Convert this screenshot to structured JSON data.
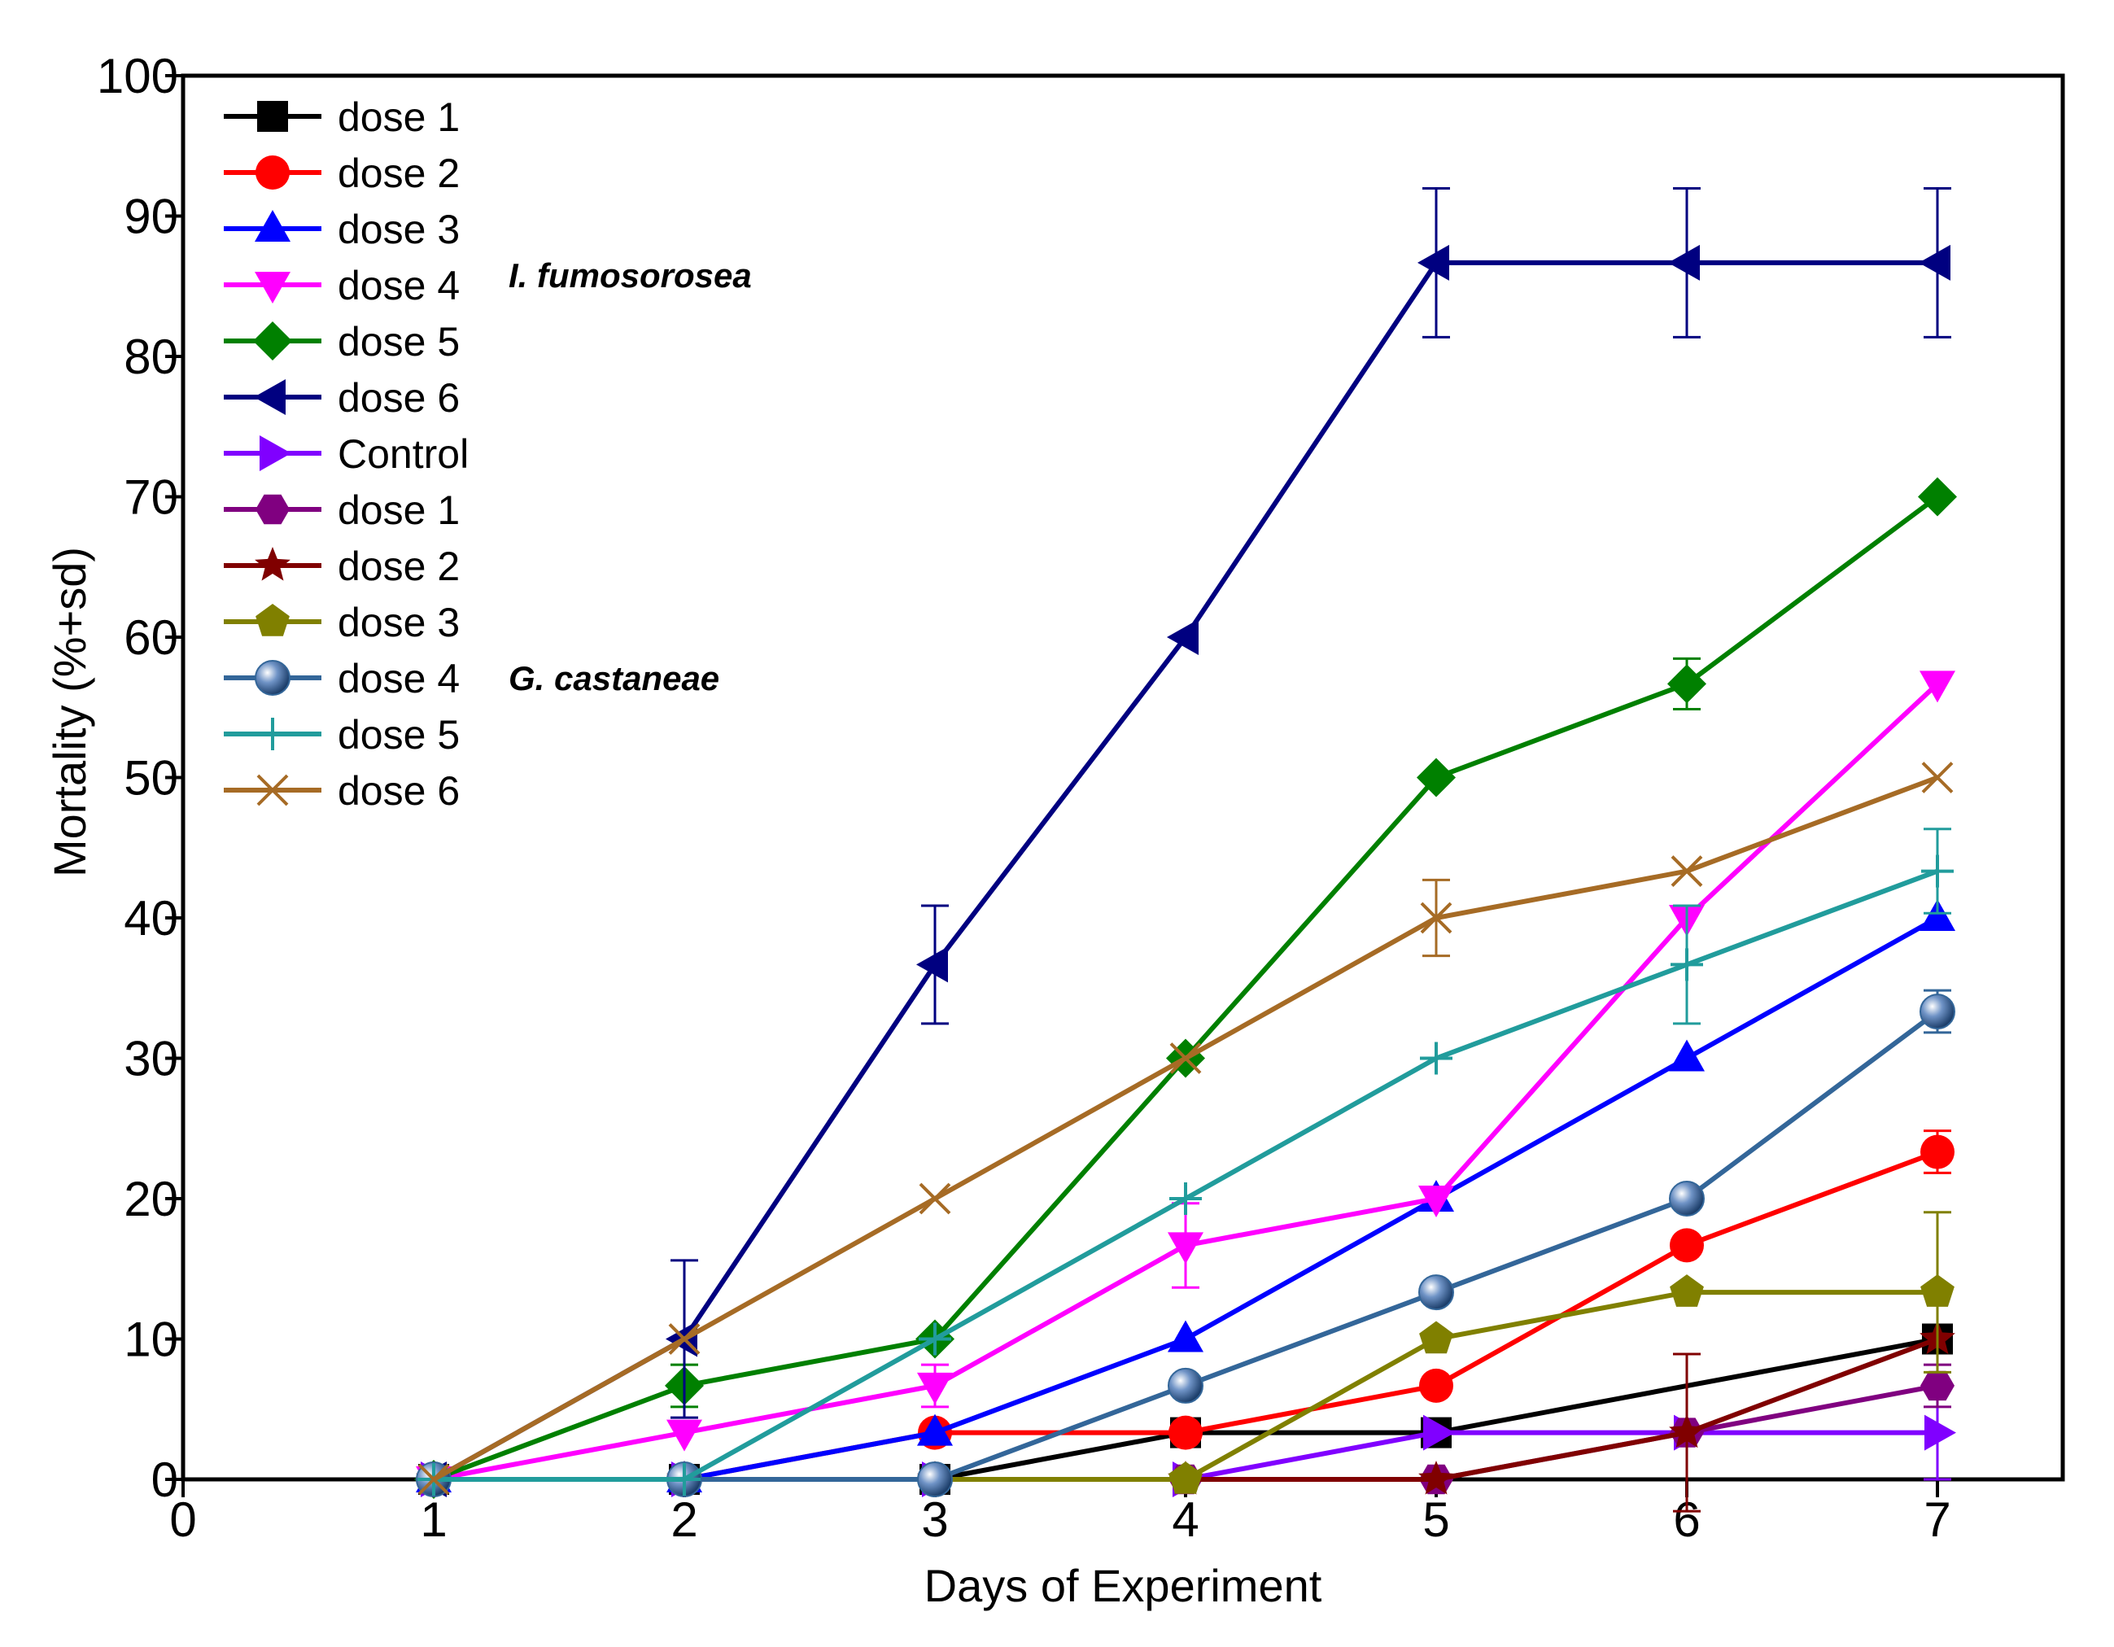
{
  "chart_data": {
    "type": "line",
    "xlabel": "Days of Experiment",
    "ylabel": "Mortality (%+sd)",
    "xlim": [
      0,
      7.5
    ],
    "ylim": [
      0,
      100
    ],
    "xticks": [
      0,
      1,
      2,
      3,
      4,
      5,
      6,
      7
    ],
    "yticks": [
      0,
      10,
      20,
      30,
      40,
      50,
      60,
      70,
      80,
      90,
      100
    ],
    "x": [
      1,
      2,
      3,
      4,
      5,
      6,
      7
    ],
    "grid": false,
    "legend_position": "top-left",
    "annotations": [
      {
        "text": "I. fumosorosea",
        "group": "first six doses"
      },
      {
        "text": "G. castaneae",
        "group": "last six doses"
      }
    ],
    "series": [
      {
        "name": "dose 1",
        "color": "#000000",
        "marker": "square",
        "values": [
          0,
          0,
          0,
          3.33,
          3.33,
          null,
          10
        ],
        "errors": [
          0,
          0,
          0,
          0,
          0,
          0,
          0
        ]
      },
      {
        "name": "dose 2",
        "color": "#ff0000",
        "marker": "circle",
        "values": [
          0,
          0,
          3.33,
          3.33,
          6.67,
          16.67,
          23.33
        ],
        "errors": [
          0,
          0,
          0,
          0,
          0,
          0,
          1.5
        ]
      },
      {
        "name": "dose 3",
        "color": "#0000ff",
        "marker": "triangle-up",
        "values": [
          0,
          0,
          3.33,
          10,
          20,
          30,
          40
        ],
        "errors": [
          0,
          0,
          0,
          0,
          0,
          0,
          0
        ]
      },
      {
        "name": "dose 4",
        "color": "#ff00ff",
        "marker": "triangle-down",
        "values": [
          0,
          3.33,
          6.67,
          16.67,
          20,
          40,
          56.67
        ],
        "errors": [
          0,
          0,
          1.5,
          3,
          0,
          0,
          0
        ]
      },
      {
        "name": "dose 5",
        "color": "#008000",
        "marker": "diamond",
        "values": [
          0,
          6.67,
          10,
          30,
          50,
          56.67,
          70
        ],
        "errors": [
          0,
          1.5,
          0,
          0,
          0,
          1.8,
          0
        ]
      },
      {
        "name": "dose 6",
        "color": "#000080",
        "marker": "triangle-left",
        "values": [
          0,
          10,
          36.67,
          60,
          86.67,
          86.67,
          86.67
        ],
        "errors": [
          0,
          5.6,
          4.2,
          0,
          5.3,
          5.3,
          5.3
        ]
      },
      {
        "name": "Control",
        "color": "#8000ff",
        "marker": "triangle-right",
        "values": [
          0,
          0,
          0,
          0,
          3.33,
          3.33,
          3.33
        ],
        "errors": [
          0,
          0,
          0,
          0,
          0,
          0,
          3.33
        ]
      },
      {
        "name": "dose 1",
        "color": "#800080",
        "marker": "hexagon",
        "values": [
          0,
          0,
          0,
          0,
          0,
          3.33,
          6.67
        ],
        "errors": [
          0,
          0,
          0,
          0,
          0,
          0,
          1.5
        ]
      },
      {
        "name": "dose 2",
        "color": "#800000",
        "marker": "star",
        "values": [
          0,
          0,
          0,
          0,
          0,
          3.33,
          10
        ],
        "errors": [
          0,
          0,
          0,
          0,
          0,
          5.6,
          0
        ]
      },
      {
        "name": "dose 3",
        "color": "#808000",
        "marker": "pentagon",
        "values": [
          0,
          0,
          0,
          0,
          10,
          13.33,
          13.33
        ],
        "errors": [
          0,
          0,
          0,
          0,
          0,
          0,
          5.7
        ]
      },
      {
        "name": "dose 4",
        "color": "#336699",
        "marker": "sphere",
        "values": [
          0,
          0,
          0,
          6.67,
          13.33,
          20,
          33.33
        ],
        "errors": [
          0,
          0,
          0,
          0,
          0,
          0,
          1.5
        ]
      },
      {
        "name": "dose 5",
        "color": "#219c9c",
        "marker": "plus",
        "values": [
          0,
          0,
          10,
          20,
          30,
          36.67,
          43.33
        ],
        "errors": [
          0,
          0,
          0,
          0,
          0,
          4.2,
          3
        ]
      },
      {
        "name": "dose 6",
        "color": "#a66b25",
        "marker": "cross",
        "values": [
          0,
          10,
          20,
          30,
          40,
          43.33,
          50
        ],
        "errors": [
          0,
          0,
          0,
          0,
          2.7,
          0,
          0
        ]
      }
    ]
  }
}
